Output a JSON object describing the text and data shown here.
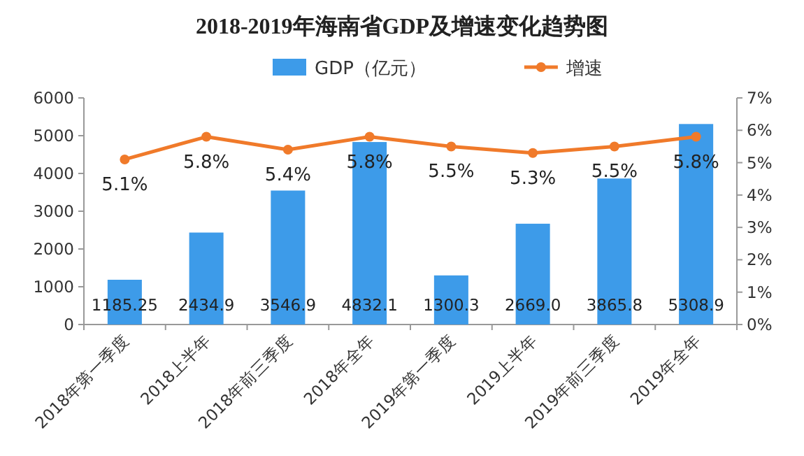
{
  "chart_data": {
    "type": "bar",
    "title": "2018-2019年海南省GDP及增速变化趋势图",
    "categories": [
      "2018年第一季度",
      "2018上半年",
      "2018年前三季度",
      "2018年全年",
      "2019年第一季度",
      "2019上半年",
      "2019年前三季度",
      "2019年全年"
    ],
    "series": [
      {
        "name": "GDP（亿元）",
        "color": "#3d9be9",
        "values": [
          1185.25,
          2434.9,
          3546.9,
          4832.1,
          1300.3,
          2669.0,
          3865.8,
          5308.9
        ],
        "value_labels": [
          "1185.25",
          "2434.9",
          "3546.9",
          "4832.1",
          "1300.3",
          "2669.0",
          "3865.8",
          "5308.9"
        ]
      },
      {
        "name": "增速",
        "type": "line",
        "axis": "y2",
        "color": "#f07a2a",
        "values": [
          5.1,
          5.8,
          5.4,
          5.8,
          5.5,
          5.3,
          5.5,
          5.8
        ],
        "value_labels": [
          "5.1%",
          "5.8%",
          "5.4%",
          "5.8%",
          "5.5%",
          "5.3%",
          "5.5%",
          "5.8%"
        ]
      }
    ],
    "ylim": [
      0,
      6000
    ],
    "yticks": [
      0,
      1000,
      2000,
      3000,
      4000,
      5000,
      6000
    ],
    "y2lim": [
      0,
      7
    ],
    "y2ticks": [
      {
        "value": 0,
        "label": "0%"
      },
      {
        "value": 1,
        "label": "1%"
      },
      {
        "value": 2,
        "label": "2%"
      },
      {
        "value": 3,
        "label": "3%"
      },
      {
        "value": 4,
        "label": "4%"
      },
      {
        "value": 5,
        "label": "5%"
      },
      {
        "value": 6,
        "label": "6%"
      },
      {
        "value": 7,
        "label": "7%"
      }
    ],
    "legend": "top",
    "marker": "circle",
    "grid": false
  }
}
